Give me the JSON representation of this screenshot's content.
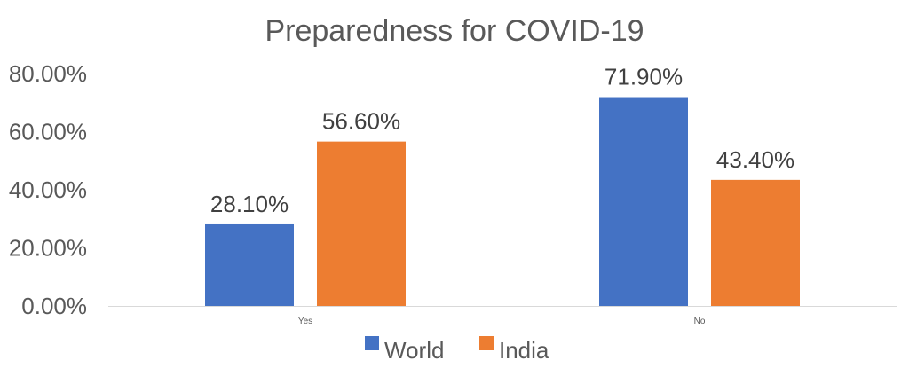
{
  "chart_data": {
    "type": "bar",
    "title": "Preparedness for COVID-19",
    "categories": [
      "Yes",
      "No"
    ],
    "series": [
      {
        "name": "World",
        "values": [
          28.1,
          71.9
        ],
        "labels": [
          "28.10%",
          "71.90%"
        ],
        "color": "#4472C4"
      },
      {
        "name": "India",
        "values": [
          56.6,
          43.4
        ],
        "labels": [
          "56.60%",
          "43.40%"
        ],
        "color": "#ED7D31"
      }
    ],
    "ylim": [
      0,
      80
    ],
    "yticks": [
      0,
      20,
      40,
      60,
      80
    ],
    "ytick_labels": [
      "0.00%",
      "20.00%",
      "40.00%",
      "60.00%",
      "80.00%"
    ],
    "xlabel": "",
    "ylabel": "",
    "grid": false,
    "legend_position": "bottom"
  }
}
